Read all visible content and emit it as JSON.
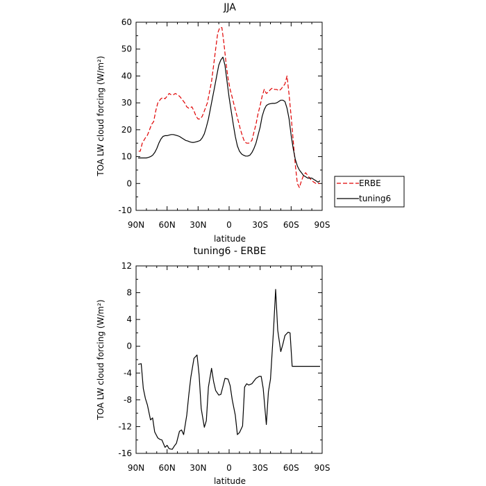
{
  "chart_data": [
    {
      "type": "line",
      "title": "JJA",
      "xlabel": "latitude",
      "ylabel": "TOA LW cloud forcing (W/m²)",
      "ylim": [
        -10,
        60
      ],
      "xlim": [
        90,
        -90
      ],
      "yticks": [
        -10,
        0,
        10,
        20,
        30,
        40,
        50,
        60
      ],
      "xticks": [
        90,
        60,
        30,
        0,
        -30,
        -60,
        -90
      ],
      "xticklabels": [
        "90N",
        "60N",
        "30N",
        "0",
        "30S",
        "60S",
        "90S"
      ],
      "legend": {
        "placement": "right",
        "entries": [
          "ERBE",
          "tuning6"
        ]
      },
      "series": [
        {
          "name": "ERBE",
          "color": "#e00000",
          "dash": "dashed",
          "x": [
            87.5,
            86,
            84,
            81,
            79,
            77,
            75,
            73,
            71,
            69,
            66,
            64,
            62,
            60,
            58,
            56,
            54,
            52,
            50,
            48,
            46,
            43,
            41,
            39,
            36,
            34,
            32,
            30,
            28,
            26,
            24,
            21,
            19,
            17,
            15,
            13,
            11,
            9,
            7,
            5,
            3,
            1,
            -1,
            -3,
            -5,
            -7,
            -9,
            -11,
            -13,
            -15,
            -17,
            -19,
            -22,
            -24,
            -26,
            -28,
            -30,
            -32,
            -34,
            -36,
            -38,
            -40,
            -42,
            -44,
            -46,
            -48,
            -50,
            -52,
            -54,
            -56,
            -58,
            -60,
            -62,
            -64,
            -66,
            -68,
            -70,
            -72,
            -74,
            -76,
            -78,
            -80,
            -82,
            -84,
            -86,
            -88
          ],
          "values": [
            12,
            12,
            15,
            17,
            18,
            20,
            22,
            23,
            27,
            30,
            31.5,
            32,
            31.5,
            32.5,
            33.5,
            33,
            33,
            33.5,
            33,
            32.5,
            31.5,
            30,
            28.5,
            28,
            28.5,
            27,
            25,
            24,
            24,
            25,
            27,
            30,
            34,
            38,
            44,
            50,
            56,
            58,
            58,
            52,
            45,
            39,
            35,
            32,
            29,
            26,
            23,
            20,
            17.5,
            15.5,
            15,
            15,
            16,
            19,
            22,
            26,
            29,
            32.5,
            35,
            33.5,
            34,
            35,
            35.5,
            35,
            35,
            34.5,
            35,
            36,
            37,
            40,
            33,
            25,
            16,
            7,
            0,
            -1.5,
            1,
            3,
            4,
            3,
            2,
            1,
            0.5,
            0,
            0,
            0
          ]
        },
        {
          "name": "tuning6",
          "color": "#000000",
          "dash": "solid",
          "x": [
            88,
            86,
            84,
            82,
            80,
            78,
            76,
            74,
            72,
            70,
            68,
            66,
            64,
            62,
            60,
            58,
            56,
            54,
            52,
            50,
            48,
            46,
            44,
            42,
            40,
            38,
            36,
            34,
            32,
            30,
            28,
            26,
            24,
            22,
            20,
            18,
            16,
            14,
            12,
            10,
            8,
            6,
            4,
            2,
            0,
            -2,
            -4,
            -6,
            -8,
            -10,
            -12,
            -14,
            -16,
            -18,
            -20,
            -22,
            -24,
            -26,
            -28,
            -30,
            -32,
            -34,
            -36,
            -38,
            -40,
            -42,
            -44,
            -46,
            -48,
            -50,
            -52,
            -54,
            -56,
            -58,
            -60,
            -62,
            -64,
            -66,
            -68,
            -70,
            -72,
            -74,
            -76,
            -78,
            -80,
            -82,
            -84,
            -86,
            -88
          ],
          "values": [
            9.5,
            9.5,
            9.5,
            9.5,
            9.5,
            9.7,
            10,
            10.5,
            11.5,
            13,
            15,
            16.5,
            17.5,
            17.8,
            17.8,
            18,
            18.2,
            18.2,
            18,
            17.8,
            17.5,
            17,
            16.5,
            16,
            15.8,
            15.5,
            15.3,
            15.3,
            15.5,
            15.7,
            16,
            17,
            18.5,
            21,
            24,
            28,
            32,
            36,
            40,
            44,
            46,
            47,
            44,
            38,
            32,
            27,
            22,
            17.5,
            14,
            12,
            11,
            10.5,
            10.2,
            10.2,
            10.5,
            11.5,
            13,
            15,
            18,
            21,
            25,
            27.5,
            29,
            29.5,
            29.7,
            29.8,
            29.8,
            30,
            30.5,
            31,
            31,
            30.5,
            28,
            24,
            18,
            13,
            9,
            6.5,
            5,
            4,
            3,
            2.5,
            2,
            2,
            2,
            1.5,
            1,
            0.5,
            1
          ]
        }
      ]
    },
    {
      "type": "line",
      "title": "tuning6 - ERBE",
      "xlabel": "latitude",
      "ylabel": "TOA LW cloud forcing (W/m²)",
      "ylim": [
        -16,
        12
      ],
      "xlim": [
        90,
        -90
      ],
      "yticks": [
        -16,
        -12,
        -8,
        -4,
        0,
        4,
        8,
        12
      ],
      "xticks": [
        90,
        60,
        30,
        0,
        -30,
        -60,
        -90
      ],
      "xticklabels": [
        "90N",
        "60N",
        "30N",
        "0",
        "30S",
        "60S",
        "90S"
      ],
      "series": [
        {
          "color": "#000000",
          "dash": "solid",
          "x": [
            88,
            85,
            83,
            81,
            79,
            76,
            74,
            72,
            69,
            67,
            65,
            62,
            60,
            58,
            55,
            53,
            51,
            48,
            46,
            44,
            41,
            39,
            37,
            34,
            31,
            29,
            27,
            24,
            22,
            20,
            17,
            15,
            13,
            10,
            8,
            6,
            4,
            1,
            -1,
            -3,
            -6,
            -8,
            -10,
            -13,
            -15,
            -17,
            -19,
            -22,
            -24,
            -26,
            -29,
            -31,
            -33,
            -36,
            -38,
            -40,
            -43,
            -45,
            -47,
            -50,
            -52,
            -54,
            -57,
            -59,
            -61,
            -64,
            -66,
            -68,
            -70,
            -72,
            -74,
            -77,
            -79,
            -81,
            -84,
            -86,
            -88
          ],
          "values": [
            -2.7,
            -2.6,
            -6.3,
            -7.8,
            -8.8,
            -11,
            -10.7,
            -12.8,
            -13.7,
            -13.9,
            -14,
            -15.1,
            -14.8,
            -15.3,
            -15.4,
            -14.9,
            -14.5,
            -12.7,
            -12.5,
            -13.2,
            -10.3,
            -7.3,
            -4.6,
            -1.8,
            -1.3,
            -4.3,
            -9.3,
            -12.1,
            -11.1,
            -6.1,
            -3.3,
            -5.3,
            -6.6,
            -7.3,
            -7.2,
            -6.0,
            -4.8,
            -4.9,
            -5.9,
            -8.0,
            -10.3,
            -13.2,
            -12.9,
            -11.9,
            -6.1,
            -5.6,
            -5.8,
            -5.6,
            -5.2,
            -4.8,
            -4.5,
            -4.5,
            -6.3,
            -11.7,
            -6.8,
            -4.9,
            2.5,
            8.5,
            2.4,
            -0.8,
            0.3,
            1.6,
            2.1,
            2.0,
            -3.0,
            -3.0,
            -3.0,
            -3.0,
            -3.0,
            -3.0,
            -3.0,
            -3.0,
            -3.0,
            -3.0,
            -3.0,
            -3.0,
            -3.0
          ]
        }
      ]
    }
  ]
}
